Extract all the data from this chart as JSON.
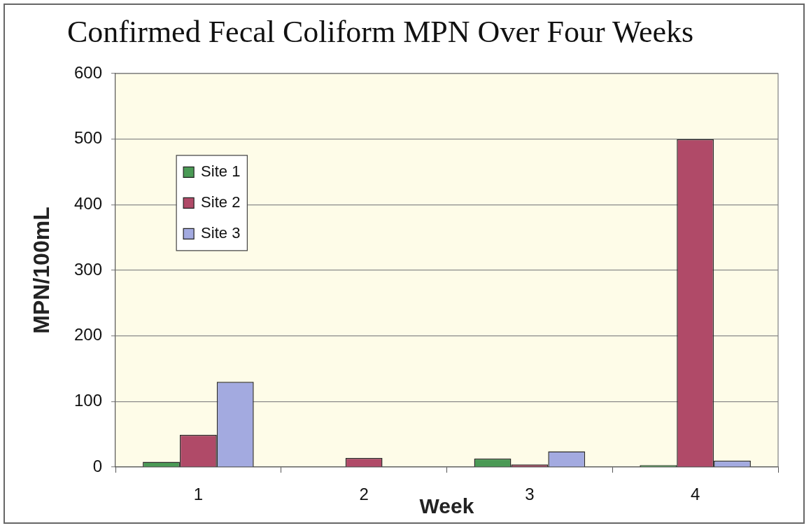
{
  "chart_data": {
    "type": "bar",
    "title": "Confirmed Fecal Coliform MPN Over Four Weeks",
    "xlabel": "Week",
    "ylabel": "MPN/100mL",
    "categories": [
      "1",
      "2",
      "3",
      "4"
    ],
    "series": [
      {
        "name": "Site 1",
        "color": "#4a9a55",
        "values": [
          8,
          0,
          13,
          3
        ]
      },
      {
        "name": "Site 2",
        "color": "#b04a68",
        "values": [
          49,
          14,
          4,
          500
        ]
      },
      {
        "name": "Site 3",
        "color": "#a3aae0",
        "values": [
          130,
          0,
          24,
          10
        ]
      }
    ],
    "ylim": [
      0,
      600
    ],
    "yticks": [
      0,
      100,
      200,
      300,
      400,
      500,
      600
    ],
    "grid": "y",
    "legend": "top left"
  }
}
